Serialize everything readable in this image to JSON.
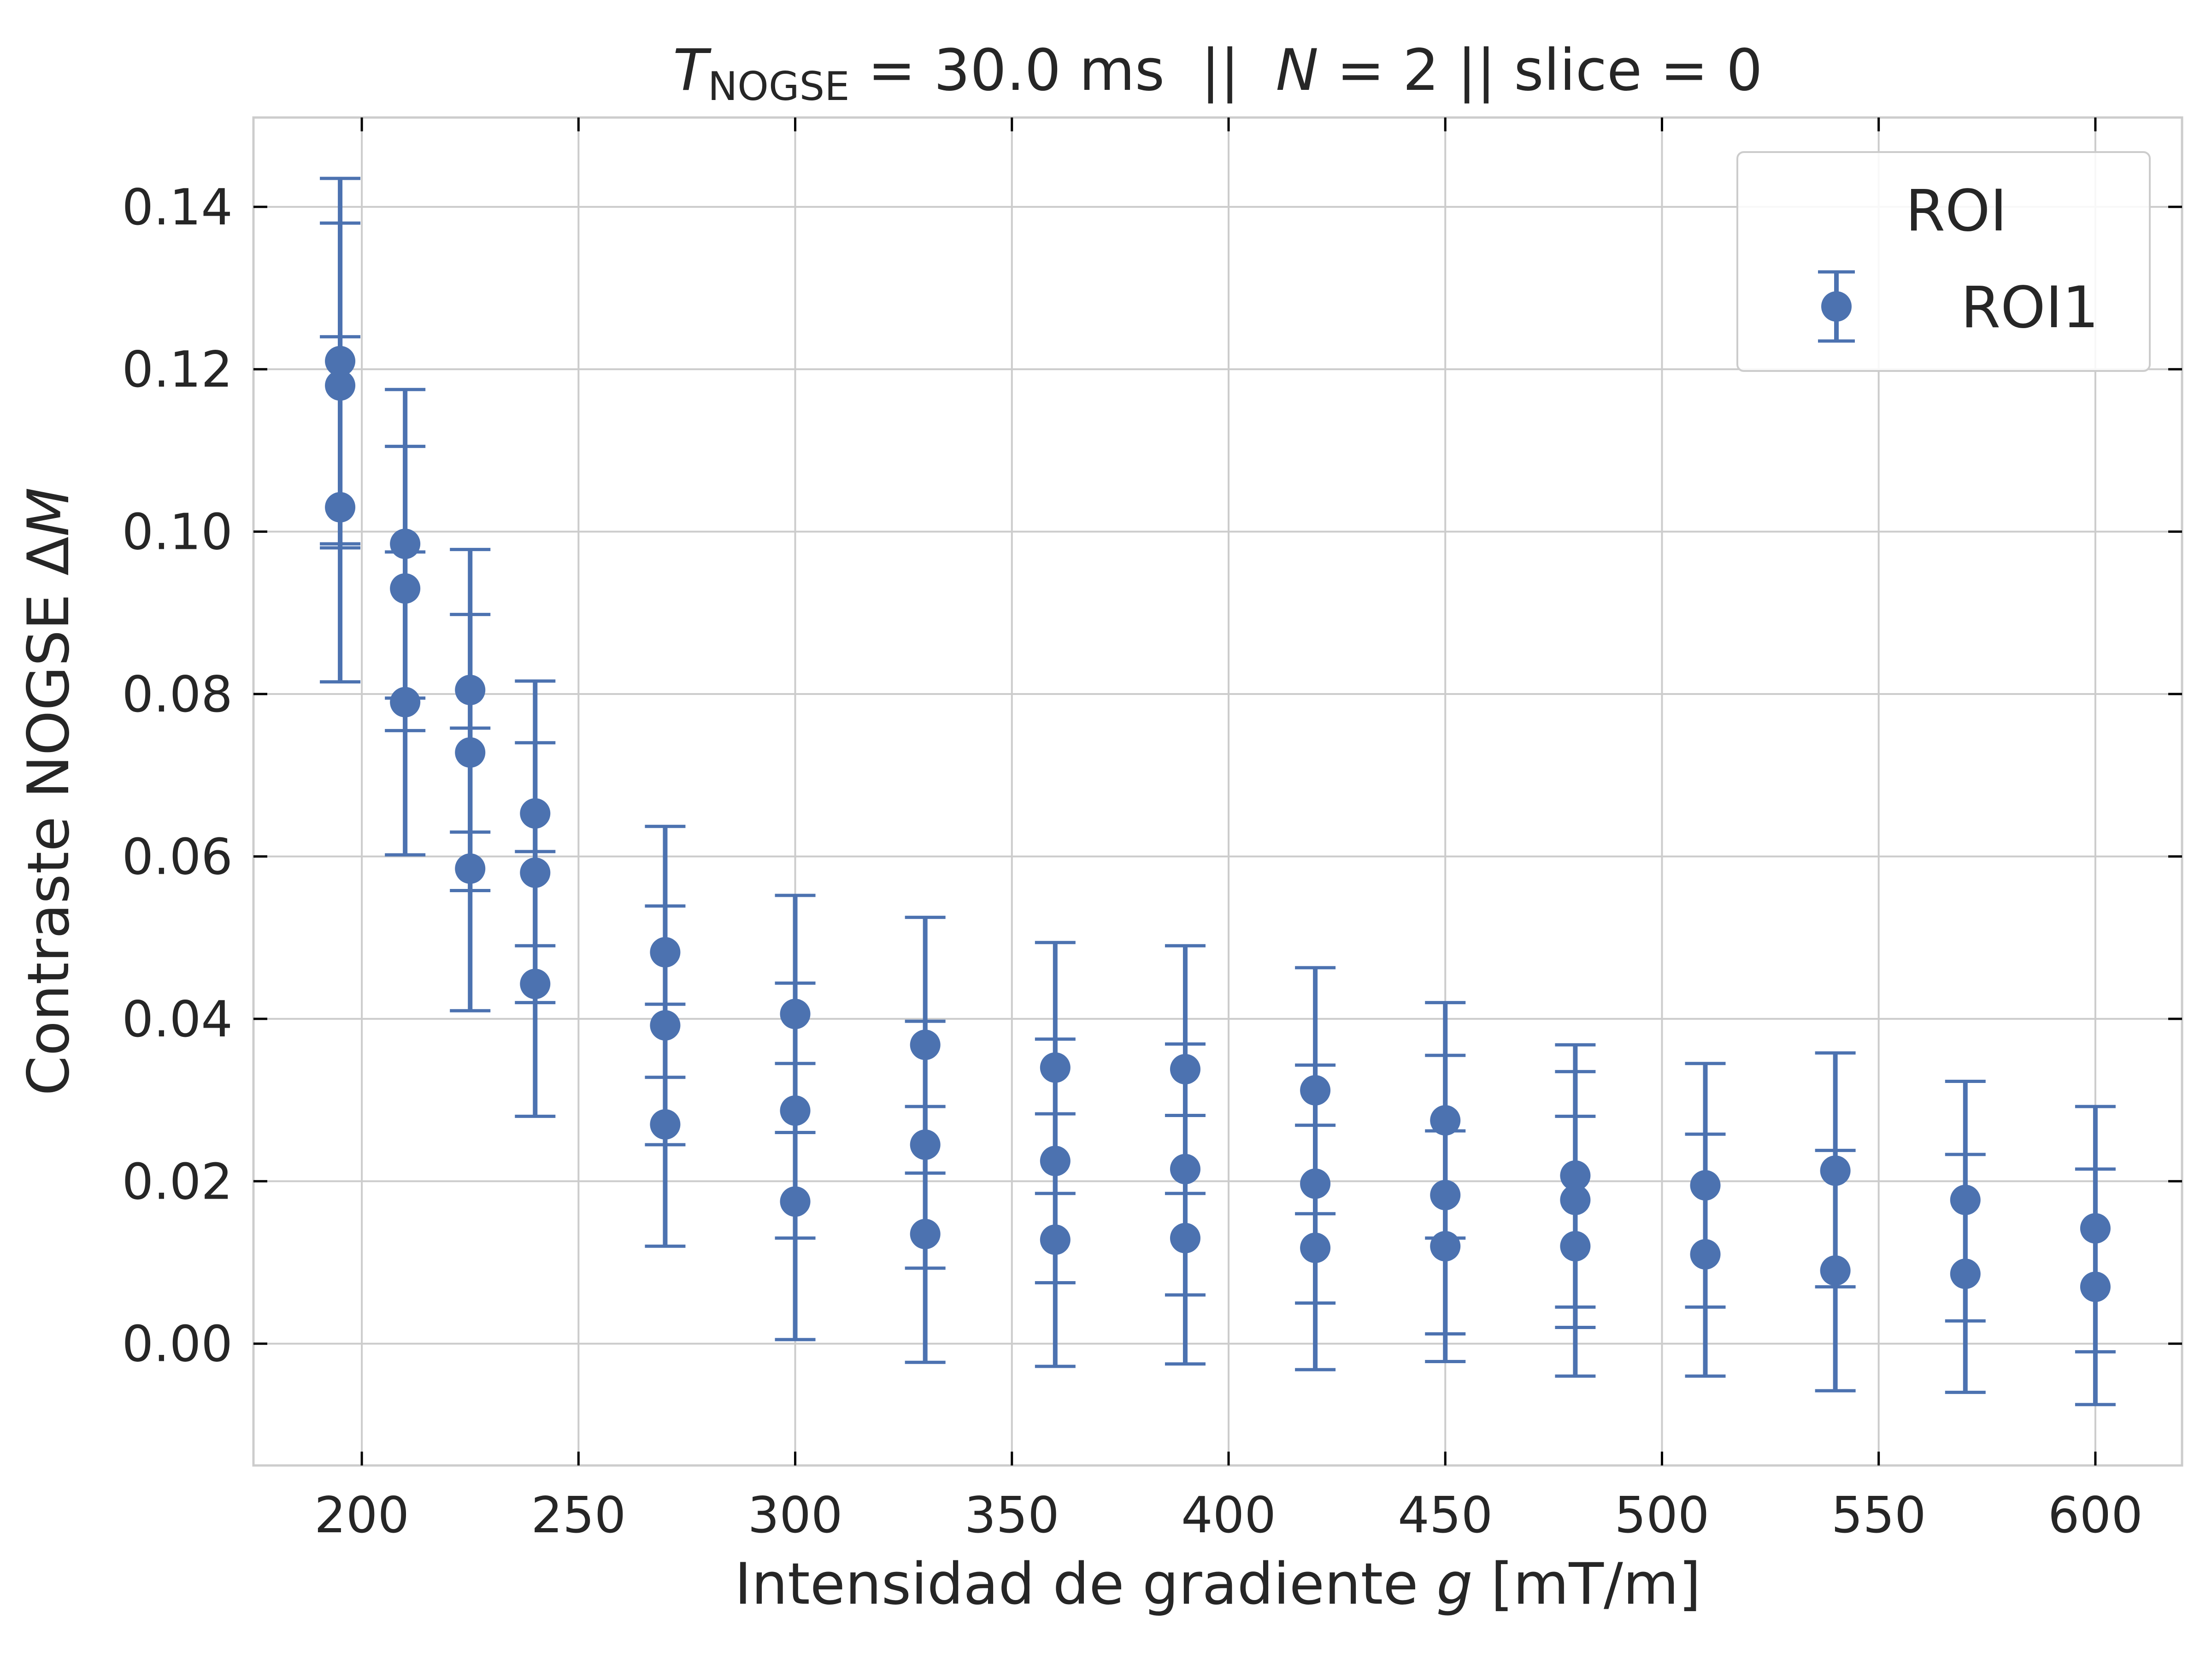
{
  "chart_data": {
    "type": "scatter",
    "title": {
      "symbol": "T",
      "subscript": "NOGSE",
      "rest_1": " = 30.0 ms  ||  ",
      "n_symbol": "N",
      "rest_2": " = 2 || slice = 0"
    },
    "xlabel": {
      "text": "Intensidad de gradiente ",
      "symbol": "g",
      "unit": " [mT/m]"
    },
    "ylabel": {
      "text": "Contraste NOGSE Δ",
      "symbol": "M"
    },
    "xlim": [
      175,
      620
    ],
    "ylim": [
      -0.015,
      0.151
    ],
    "xticks": [
      200,
      250,
      300,
      350,
      400,
      450,
      500,
      550,
      600
    ],
    "xtick_labels": [
      "200",
      "250",
      "300",
      "350",
      "400",
      "450",
      "500",
      "550",
      "600"
    ],
    "yticks": [
      0.0,
      0.02,
      0.04,
      0.06,
      0.08,
      0.1,
      0.12,
      0.14
    ],
    "ytick_labels": [
      "0.00",
      "0.02",
      "0.04",
      "0.06",
      "0.08",
      "0.10",
      "0.12",
      "0.14"
    ],
    "grid": true,
    "legend": {
      "title": "ROI",
      "placement": "top-right",
      "entries": [
        "ROI1"
      ]
    },
    "series": [
      {
        "name": "ROI1",
        "color": "#4c72b0",
        "points": [
          {
            "x": 195,
            "y": 0.121,
            "lo": 0.0985,
            "hi": 0.1435
          },
          {
            "x": 195,
            "y": 0.118,
            "lo": 0.098,
            "hi": 0.138
          },
          {
            "x": 195,
            "y": 0.103,
            "lo": 0.0815,
            "hi": 0.124
          },
          {
            "x": 210,
            "y": 0.0985,
            "lo": 0.0795,
            "hi": 0.1175
          },
          {
            "x": 210,
            "y": 0.093,
            "lo": 0.0755,
            "hi": 0.1105
          },
          {
            "x": 210,
            "y": 0.079,
            "lo": 0.0602,
            "hi": 0.0975
          },
          {
            "x": 225,
            "y": 0.0805,
            "lo": 0.063,
            "hi": 0.0978
          },
          {
            "x": 225,
            "y": 0.0728,
            "lo": 0.0558,
            "hi": 0.0898
          },
          {
            "x": 225,
            "y": 0.0585,
            "lo": 0.041,
            "hi": 0.0758
          },
          {
            "x": 240,
            "y": 0.0653,
            "lo": 0.049,
            "hi": 0.0816
          },
          {
            "x": 240,
            "y": 0.058,
            "lo": 0.042,
            "hi": 0.074
          },
          {
            "x": 240,
            "y": 0.0443,
            "lo": 0.028,
            "hi": 0.0606
          },
          {
            "x": 270,
            "y": 0.0482,
            "lo": 0.0328,
            "hi": 0.0637
          },
          {
            "x": 270,
            "y": 0.0392,
            "lo": 0.0245,
            "hi": 0.0539
          },
          {
            "x": 270,
            "y": 0.027,
            "lo": 0.012,
            "hi": 0.0418
          },
          {
            "x": 300,
            "y": 0.0406,
            "lo": 0.026,
            "hi": 0.0552
          },
          {
            "x": 300,
            "y": 0.0287,
            "lo": 0.013,
            "hi": 0.0444
          },
          {
            "x": 300,
            "y": 0.0175,
            "lo": 0.0005,
            "hi": 0.0345
          },
          {
            "x": 330,
            "y": 0.0368,
            "lo": 0.021,
            "hi": 0.0525
          },
          {
            "x": 330,
            "y": 0.0245,
            "lo": 0.0093,
            "hi": 0.0397
          },
          {
            "x": 330,
            "y": 0.0135,
            "lo": -0.0023,
            "hi": 0.0292
          },
          {
            "x": 360,
            "y": 0.034,
            "lo": 0.0185,
            "hi": 0.0494
          },
          {
            "x": 360,
            "y": 0.0225,
            "lo": 0.0075,
            "hi": 0.0375
          },
          {
            "x": 360,
            "y": 0.0128,
            "lo": -0.0028,
            "hi": 0.0283
          },
          {
            "x": 390,
            "y": 0.0338,
            "lo": 0.0185,
            "hi": 0.049
          },
          {
            "x": 390,
            "y": 0.0215,
            "lo": 0.006,
            "hi": 0.0369
          },
          {
            "x": 390,
            "y": 0.013,
            "lo": -0.0025,
            "hi": 0.0281
          },
          {
            "x": 420,
            "y": 0.0312,
            "lo": 0.016,
            "hi": 0.0463
          },
          {
            "x": 420,
            "y": 0.0197,
            "lo": 0.005,
            "hi": 0.0343
          },
          {
            "x": 420,
            "y": 0.0118,
            "lo": -0.0032,
            "hi": 0.0269
          },
          {
            "x": 450,
            "y": 0.0275,
            "lo": 0.013,
            "hi": 0.042
          },
          {
            "x": 450,
            "y": 0.0183,
            "lo": 0.0012,
            "hi": 0.0355
          },
          {
            "x": 450,
            "y": 0.012,
            "lo": -0.0022,
            "hi": 0.0262
          },
          {
            "x": 480,
            "y": 0.0207,
            "lo": 0.0045,
            "hi": 0.0368
          },
          {
            "x": 480,
            "y": 0.0177,
            "lo": 0.002,
            "hi": 0.0335
          },
          {
            "x": 480,
            "y": 0.012,
            "lo": -0.004,
            "hi": 0.028
          },
          {
            "x": 510,
            "y": 0.0195,
            "lo": 0.0045,
            "hi": 0.0345
          },
          {
            "x": 510,
            "y": 0.011,
            "lo": -0.004,
            "hi": 0.0258
          },
          {
            "x": 540,
            "y": 0.0213,
            "lo": 0.007,
            "hi": 0.0358
          },
          {
            "x": 540,
            "y": 0.009,
            "lo": -0.0058,
            "hi": 0.0238
          },
          {
            "x": 570,
            "y": 0.0177,
            "lo": 0.0028,
            "hi": 0.0323
          },
          {
            "x": 570,
            "y": 0.0086,
            "lo": -0.006,
            "hi": 0.0233
          },
          {
            "x": 600,
            "y": 0.0142,
            "lo": -0.001,
            "hi": 0.0292
          },
          {
            "x": 600,
            "y": 0.007,
            "lo": -0.0075,
            "hi": 0.0215
          }
        ]
      }
    ]
  }
}
